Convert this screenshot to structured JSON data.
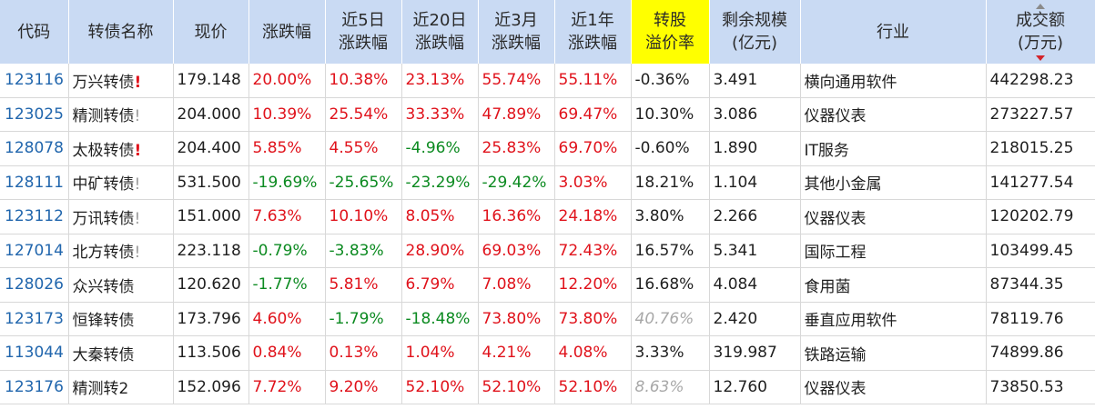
{
  "colors": {
    "header_bg": "#c9daf3",
    "highlight_header_bg": "#ffff00",
    "up": "#e0121b",
    "down": "#0b8a20",
    "code": "#2166ad",
    "muted": "#a8a8a8"
  },
  "headers": [
    {
      "key": "code",
      "lines": [
        "代码"
      ]
    },
    {
      "key": "name",
      "lines": [
        "转债名称"
      ]
    },
    {
      "key": "price",
      "lines": [
        "现价"
      ]
    },
    {
      "key": "change",
      "lines": [
        "涨跌幅"
      ]
    },
    {
      "key": "chg5d",
      "lines": [
        "近5日",
        "涨跌幅"
      ]
    },
    {
      "key": "chg20d",
      "lines": [
        "近20日",
        "涨跌幅"
      ]
    },
    {
      "key": "chg3m",
      "lines": [
        "近3月",
        "涨跌幅"
      ]
    },
    {
      "key": "chg1y",
      "lines": [
        "近1年",
        "涨跌幅"
      ]
    },
    {
      "key": "premium",
      "lines": [
        "转股",
        "溢价率"
      ],
      "highlight": true
    },
    {
      "key": "scale",
      "lines": [
        "剩余规模",
        "(亿元)"
      ]
    },
    {
      "key": "industry",
      "lines": [
        "行业"
      ]
    },
    {
      "key": "turnover",
      "lines": [
        "成交额",
        "(万元)"
      ],
      "sorted": "desc"
    }
  ],
  "rows": [
    {
      "code": "123116",
      "name": "万兴转债",
      "flag": "!",
      "flag_style": "red",
      "price": "179.148",
      "change": "20.00%",
      "chg5d": "10.38%",
      "chg20d": "23.13%",
      "chg3m": "55.74%",
      "chg1y": "55.11%",
      "premium": "-0.36%",
      "premium_muted": false,
      "scale": "3.491",
      "industry": "横向通用软件",
      "turnover": "442298.23"
    },
    {
      "code": "123025",
      "name": "精测转债",
      "flag": "!",
      "flag_style": "gray",
      "price": "204.000",
      "change": "10.39%",
      "chg5d": "25.54%",
      "chg20d": "33.33%",
      "chg3m": "47.89%",
      "chg1y": "69.47%",
      "premium": "10.30%",
      "premium_muted": false,
      "scale": "3.086",
      "industry": "仪器仪表",
      "turnover": "273227.57"
    },
    {
      "code": "128078",
      "name": "太极转债",
      "flag": "!",
      "flag_style": "red",
      "price": "204.400",
      "change": "5.85%",
      "chg5d": "4.55%",
      "chg20d": "-4.96%",
      "chg3m": "25.83%",
      "chg1y": "69.70%",
      "premium": "-0.60%",
      "premium_muted": false,
      "scale": "1.890",
      "industry": "IT服务",
      "turnover": "218015.25"
    },
    {
      "code": "128111",
      "name": "中矿转债",
      "flag": "!",
      "flag_style": "gray",
      "price": "531.500",
      "change": "-19.69%",
      "chg5d": "-25.65%",
      "chg20d": "-23.29%",
      "chg3m": "-29.42%",
      "chg1y": "3.03%",
      "premium": "18.21%",
      "premium_muted": false,
      "scale": "1.104",
      "industry": "其他小金属",
      "turnover": "141277.54"
    },
    {
      "code": "123112",
      "name": "万讯转债",
      "flag": "!",
      "flag_style": "gray",
      "price": "151.000",
      "change": "7.63%",
      "chg5d": "10.10%",
      "chg20d": "8.05%",
      "chg3m": "16.36%",
      "chg1y": "24.18%",
      "premium": "3.80%",
      "premium_muted": false,
      "scale": "2.266",
      "industry": "仪器仪表",
      "turnover": "120202.79"
    },
    {
      "code": "127014",
      "name": "北方转债",
      "flag": "!",
      "flag_style": "gray",
      "price": "223.118",
      "change": "-0.79%",
      "chg5d": "-3.83%",
      "chg20d": "28.90%",
      "chg3m": "69.03%",
      "chg1y": "72.43%",
      "premium": "16.57%",
      "premium_muted": false,
      "scale": "5.341",
      "industry": "国际工程",
      "turnover": "103499.45"
    },
    {
      "code": "128026",
      "name": "众兴转债",
      "flag": "",
      "flag_style": "",
      "price": "120.620",
      "change": "-1.77%",
      "chg5d": "5.81%",
      "chg20d": "6.79%",
      "chg3m": "7.08%",
      "chg1y": "12.20%",
      "premium": "16.68%",
      "premium_muted": false,
      "scale": "4.084",
      "industry": "食用菌",
      "turnover": "87344.35"
    },
    {
      "code": "123173",
      "name": "恒锋转债",
      "flag": "",
      "flag_style": "",
      "price": "173.796",
      "change": "4.60%",
      "chg5d": "-1.79%",
      "chg20d": "-18.48%",
      "chg3m": "73.80%",
      "chg1y": "73.80%",
      "premium": "40.76%",
      "premium_muted": true,
      "scale": "2.420",
      "industry": "垂直应用软件",
      "turnover": "78119.76"
    },
    {
      "code": "113044",
      "name": "大秦转债",
      "flag": "",
      "flag_style": "",
      "price": "113.506",
      "change": "0.84%",
      "chg5d": "0.13%",
      "chg20d": "1.04%",
      "chg3m": "4.21%",
      "chg1y": "4.08%",
      "premium": "3.33%",
      "premium_muted": false,
      "scale": "319.987",
      "industry": "铁路运输",
      "turnover": "74899.86"
    },
    {
      "code": "123176",
      "name": "精测转2",
      "flag": "",
      "flag_style": "",
      "price": "152.096",
      "change": "7.72%",
      "chg5d": "9.20%",
      "chg20d": "52.10%",
      "chg3m": "52.10%",
      "chg1y": "52.10%",
      "premium": "8.63%",
      "premium_muted": true,
      "scale": "12.760",
      "industry": "仪器仪表",
      "turnover": "73850.53"
    }
  ]
}
